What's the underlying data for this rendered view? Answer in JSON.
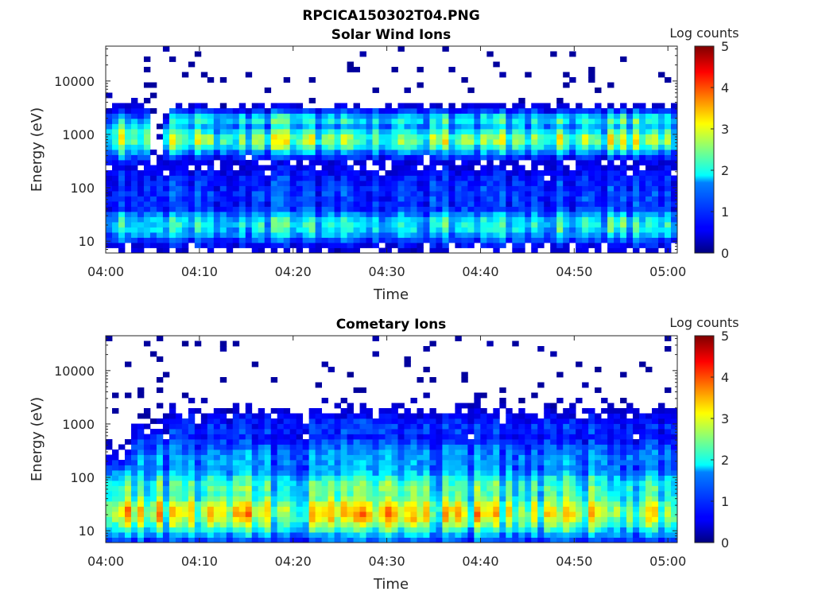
{
  "figure_title": "RPCICA150302T04.PNG",
  "chart_data": [
    {
      "type": "heatmap",
      "title": "Solar Wind Ions",
      "xlabel": "Time",
      "ylabel": "Energy (eV)",
      "colorbar_label": "Log counts",
      "x_ticks": [
        "04:00",
        "04:10",
        "04:20",
        "04:30",
        "04:40",
        "04:50",
        "05:00"
      ],
      "x_range_minutes": [
        0,
        61
      ],
      "y_scale": "log",
      "y_ticks": [
        10,
        100,
        1000,
        10000
      ],
      "y_tick_labels": [
        "10",
        "100",
        "1000",
        "10000"
      ],
      "ylim": [
        6,
        45000
      ],
      "clim": [
        0,
        5
      ],
      "colorbar_ticks": [
        "0",
        "1",
        "2",
        "3",
        "4",
        "5"
      ],
      "colormap": "jet",
      "grid": false,
      "features": [
        {
          "energy_ev": 800,
          "width_decades": 0.22,
          "peak_log_counts": 2.5,
          "t_start_min": 6,
          "t_end_min": 61
        },
        {
          "energy_ev": 1800,
          "width_decades": 0.15,
          "peak_log_counts": 1.9,
          "t_start_min": 7,
          "t_end_min": 61
        },
        {
          "energy_ev": 20,
          "width_decades": 0.25,
          "peak_log_counts": 1.9,
          "t_start_min": 0,
          "t_end_min": 61
        },
        {
          "energy_ev": 70,
          "width_decades": 0.5,
          "peak_log_counts": 0.9,
          "t_start_min": 0,
          "t_end_min": 61
        },
        {
          "energy_ev": 900,
          "width_decades": 0.3,
          "peak_log_counts": 2.6,
          "t_start_min": 0,
          "t_end_min": 4.5
        }
      ]
    },
    {
      "type": "heatmap",
      "title": "Cometary Ions",
      "xlabel": "Time",
      "ylabel": "Energy (eV)",
      "colorbar_label": "Log counts",
      "x_ticks": [
        "04:00",
        "04:10",
        "04:20",
        "04:30",
        "04:40",
        "04:50",
        "05:00"
      ],
      "x_range_minutes": [
        0,
        61
      ],
      "y_scale": "log",
      "y_ticks": [
        10,
        100,
        1000,
        10000
      ],
      "y_tick_labels": [
        "10",
        "100",
        "1000",
        "10000"
      ],
      "ylim": [
        6,
        45000
      ],
      "clim": [
        0,
        5
      ],
      "colorbar_ticks": [
        "0",
        "1",
        "2",
        "3",
        "4",
        "5"
      ],
      "colormap": "jet",
      "grid": false,
      "features": [
        {
          "energy_ev": 22,
          "width_decades": 0.35,
          "peak_log_counts": 2.9,
          "t_start_min": 0,
          "t_end_min": 61
        },
        {
          "energy_ev": 60,
          "width_decades": 0.35,
          "peak_log_counts": 2.1,
          "t_start_min": 0,
          "t_end_min": 61
        },
        {
          "energy_ev": 200,
          "width_decades": 0.4,
          "peak_log_counts": 1.3,
          "t_start_min": 3,
          "t_end_min": 61
        },
        {
          "energy_ev": 800,
          "width_decades": 0.25,
          "peak_log_counts": 0.8,
          "t_start_min": 6,
          "t_end_min": 61
        }
      ]
    }
  ]
}
